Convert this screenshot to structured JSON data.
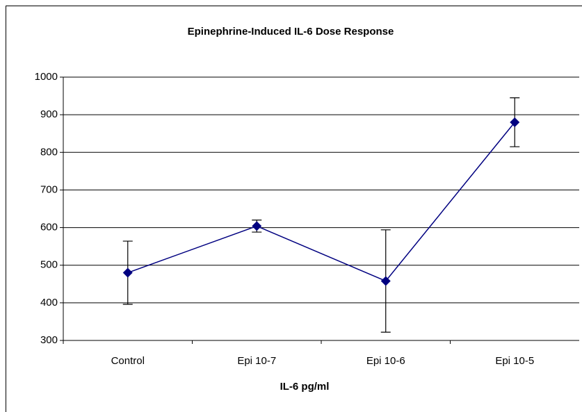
{
  "chart_data": {
    "type": "line",
    "title": "Epinephrine-Induced IL-6 Dose Response",
    "x_label": "IL-6 pg/ml",
    "categories": [
      "Control",
      "Epi 10-7",
      "Epi 10-6",
      "Epi 10-5"
    ],
    "series": [
      {
        "color": "#000080",
        "values": [
          480,
          604,
          458,
          880
        ],
        "errors": [
          84,
          16,
          136,
          65
        ]
      }
    ],
    "ylim": [
      300,
      1000
    ],
    "yticks": [
      300,
      400,
      500,
      600,
      700,
      800,
      900,
      1000
    ],
    "grid": true
  }
}
